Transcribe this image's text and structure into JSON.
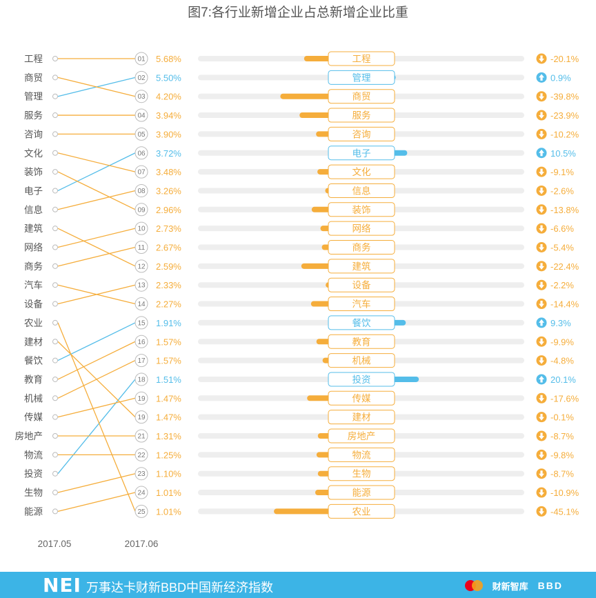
{
  "title": "图7:各行业新增企业占总新增企业比重",
  "colors": {
    "up": "#54bde9",
    "down": "#f5ad3b",
    "track": "#eeeeee",
    "rank_circle": "#bbbbbb"
  },
  "axis": {
    "left_year": "2017.05",
    "right_year": "2017.06"
  },
  "footer": {
    "brand": "NEI",
    "subtitle": "万事达卡财新BBD中国新经济指数",
    "logos": [
      "mastercard-logo",
      "财新智库",
      "BBD"
    ]
  },
  "chart_data": {
    "type": "slope-bar",
    "left_order_2017_05": [
      "工程",
      "商贸",
      "管理",
      "服务",
      "咨询",
      "文化",
      "装饰",
      "电子",
      "信息",
      "建筑",
      "网络",
      "商务",
      "汽车",
      "设备",
      "农业",
      "建材",
      "餐饮",
      "教育",
      "机械",
      "传媒",
      "房地产",
      "物流",
      "投资",
      "生物",
      "能源"
    ],
    "rows": [
      {
        "rank": "01",
        "industry": "工程",
        "share": "5.68%",
        "share_value": 5.68,
        "change": "-20.1%",
        "change_value": -20.1,
        "prev_index": 0
      },
      {
        "rank": "02",
        "industry": "管理",
        "share": "5.50%",
        "share_value": 5.5,
        "change": "0.9%",
        "change_value": 0.9,
        "prev_index": 2
      },
      {
        "rank": "03",
        "industry": "商贸",
        "share": "4.20%",
        "share_value": 4.2,
        "change": "-39.8%",
        "change_value": -39.8,
        "prev_index": 1
      },
      {
        "rank": "04",
        "industry": "服务",
        "share": "3.94%",
        "share_value": 3.94,
        "change": "-23.9%",
        "change_value": -23.9,
        "prev_index": 3
      },
      {
        "rank": "05",
        "industry": "咨询",
        "share": "3.90%",
        "share_value": 3.9,
        "change": "-10.2%",
        "change_value": -10.2,
        "prev_index": 4
      },
      {
        "rank": "06",
        "industry": "电子",
        "share": "3.72%",
        "share_value": 3.72,
        "change": "10.5%",
        "change_value": 10.5,
        "prev_index": 7
      },
      {
        "rank": "07",
        "industry": "文化",
        "share": "3.48%",
        "share_value": 3.48,
        "change": "-9.1%",
        "change_value": -9.1,
        "prev_index": 5
      },
      {
        "rank": "08",
        "industry": "信息",
        "share": "3.26%",
        "share_value": 3.26,
        "change": "-2.6%",
        "change_value": -2.6,
        "prev_index": 8
      },
      {
        "rank": "09",
        "industry": "装饰",
        "share": "2.96%",
        "share_value": 2.96,
        "change": "-13.8%",
        "change_value": -13.8,
        "prev_index": 6
      },
      {
        "rank": "10",
        "industry": "网络",
        "share": "2.73%",
        "share_value": 2.73,
        "change": "-6.6%",
        "change_value": -6.6,
        "prev_index": 10
      },
      {
        "rank": "11",
        "industry": "商务",
        "share": "2.67%",
        "share_value": 2.67,
        "change": "-5.4%",
        "change_value": -5.4,
        "prev_index": 11
      },
      {
        "rank": "12",
        "industry": "建筑",
        "share": "2.59%",
        "share_value": 2.59,
        "change": "-22.4%",
        "change_value": -22.4,
        "prev_index": 9
      },
      {
        "rank": "13",
        "industry": "设备",
        "share": "2.33%",
        "share_value": 2.33,
        "change": "-2.2%",
        "change_value": -2.2,
        "prev_index": 13
      },
      {
        "rank": "14",
        "industry": "汽车",
        "share": "2.27%",
        "share_value": 2.27,
        "change": "-14.4%",
        "change_value": -14.4,
        "prev_index": 12
      },
      {
        "rank": "15",
        "industry": "餐饮",
        "share": "1.91%",
        "share_value": 1.91,
        "change": "9.3%",
        "change_value": 9.3,
        "prev_index": 16
      },
      {
        "rank": "16",
        "industry": "教育",
        "share": "1.57%",
        "share_value": 1.57,
        "change": "-9.9%",
        "change_value": -9.9,
        "prev_index": 17
      },
      {
        "rank": "17",
        "industry": "机械",
        "share": "1.57%",
        "share_value": 1.57,
        "change": "-4.8%",
        "change_value": -4.8,
        "prev_index": 18
      },
      {
        "rank": "18",
        "industry": "投资",
        "share": "1.51%",
        "share_value": 1.51,
        "change": "20.1%",
        "change_value": 20.1,
        "prev_index": 22
      },
      {
        "rank": "19",
        "industry": "传媒",
        "share": "1.47%",
        "share_value": 1.47,
        "change": "-17.6%",
        "change_value": -17.6,
        "prev_index": 19
      },
      {
        "rank": "19",
        "industry": "建材",
        "share": "1.47%",
        "share_value": 1.47,
        "change": "-0.1%",
        "change_value": -0.1,
        "prev_index": 15
      },
      {
        "rank": "21",
        "industry": "房地产",
        "share": "1.31%",
        "share_value": 1.31,
        "change": "-8.7%",
        "change_value": -8.7,
        "prev_index": 20
      },
      {
        "rank": "22",
        "industry": "物流",
        "share": "1.25%",
        "share_value": 1.25,
        "change": "-9.8%",
        "change_value": -9.8,
        "prev_index": 21
      },
      {
        "rank": "23",
        "industry": "生物",
        "share": "1.10%",
        "share_value": 1.1,
        "change": "-8.7%",
        "change_value": -8.7,
        "prev_index": 23
      },
      {
        "rank": "24",
        "industry": "能源",
        "share": "1.01%",
        "share_value": 1.01,
        "change": "-10.9%",
        "change_value": -10.9,
        "prev_index": 24
      },
      {
        "rank": "25",
        "industry": "农业",
        "share": "1.01%",
        "share_value": 1.01,
        "change": "-45.1%",
        "change_value": -45.1,
        "prev_index": 14
      }
    ]
  }
}
